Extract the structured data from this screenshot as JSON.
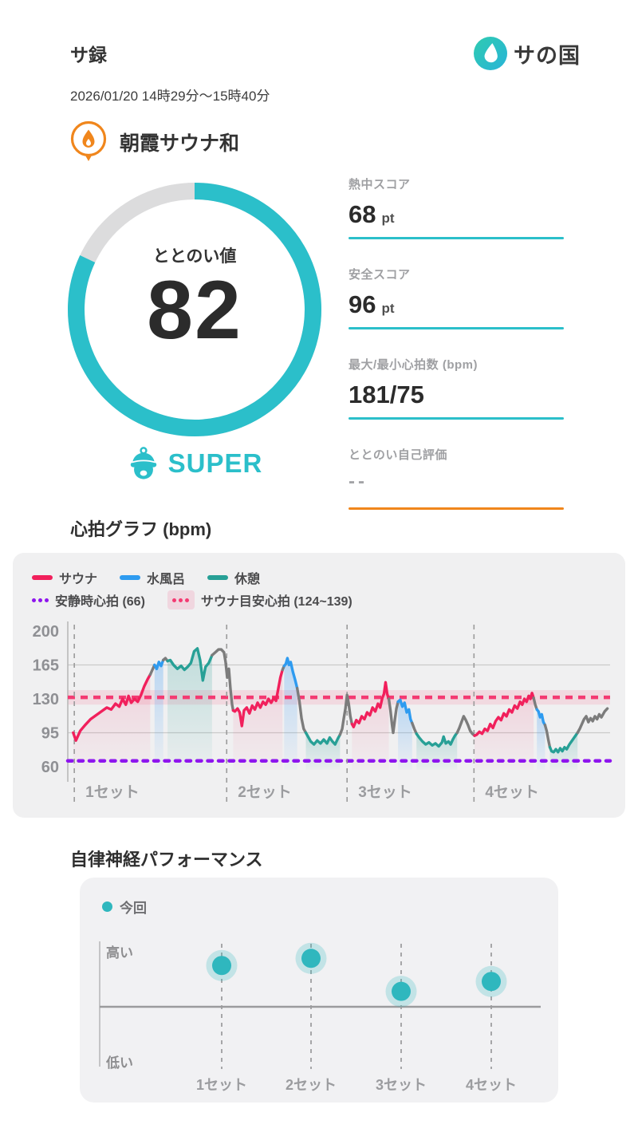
{
  "header": {
    "title": "サ録",
    "brand": "サの国",
    "date_range": "2026/01/20 14時29分〜15時40分"
  },
  "facility": {
    "name": "朝霞サウナ和"
  },
  "totonoi": {
    "label": "ととのい値",
    "value": 82,
    "max": 100,
    "rank": "SUPER"
  },
  "stats": [
    {
      "label": "熱中スコア",
      "value": "68",
      "unit": "pt",
      "underline": "#2BBFCA"
    },
    {
      "label": "安全スコア",
      "value": "96",
      "unit": "pt",
      "underline": "#2BBFCA"
    },
    {
      "label": "最大/最小心拍数 (bpm)",
      "value": "181/75",
      "unit": "",
      "underline": "#2BBFCA"
    },
    {
      "label": "ととのい自己評価",
      "value": "--",
      "unit": "",
      "underline": "#F0861C"
    }
  ],
  "colors": {
    "accent": "#2BBFCA",
    "orange": "#F0861C",
    "sauna": "#F1205C",
    "water": "#2E9BF0",
    "rest": "#27A096",
    "transition": "#7C7C7C",
    "resting_line": "#8E15EE",
    "target_line": "#F43A72"
  },
  "hr_section": {
    "title": "心拍グラフ (bpm)"
  },
  "perf_section": {
    "title": "自律神経パフォーマンス"
  },
  "chart_data": [
    {
      "type": "line",
      "title": "心拍グラフ (bpm)",
      "ylabel": "bpm",
      "ylim": [
        60,
        200
      ],
      "y_ticks": [
        200,
        165,
        130,
        95,
        60
      ],
      "gridlines_y": [
        165,
        95
      ],
      "legend": [
        {
          "label": "サウナ",
          "color": "#F1205C",
          "kind": "line"
        },
        {
          "label": "水風呂",
          "color": "#2E9BF0",
          "kind": "line"
        },
        {
          "label": "休憩",
          "color": "#27A096",
          "kind": "line"
        },
        {
          "label": "安静時心拍 (66)",
          "color": "#8E15EE",
          "kind": "dots"
        },
        {
          "label": "サウナ目安心拍 (124~139)",
          "color": "#F43A72",
          "kind": "band",
          "band_color": "rgba(244,58,114,0.14)"
        }
      ],
      "resting_hr": {
        "value": 66,
        "color": "#8E15EE"
      },
      "sauna_target": {
        "min": 124,
        "max": 139,
        "line": 131.5,
        "color": "#F43A72",
        "band_fill": "rgba(244,58,114,0.13)"
      },
      "sets": [
        {
          "label": "1セット",
          "x_pct": 1.2
        },
        {
          "label": "2セット",
          "x_pct": 29.3
        },
        {
          "label": "3セット",
          "x_pct": 51.5
        },
        {
          "label": "4セット",
          "x_pct": 74.9
        }
      ],
      "phases": {
        "s": {
          "color": "#F1205C",
          "fill": "#F1205C",
          "fill_top_opacity": 0.14
        },
        "w": {
          "color": "#2E9BF0",
          "fill": "#46A0F5",
          "fill_top_opacity": 0.3
        },
        "r": {
          "color": "#27A096",
          "fill": "#27A096",
          "fill_top_opacity": 0.22
        },
        "t": {
          "color": "#7C7C7C",
          "fill": null,
          "fill_top_opacity": 0
        }
      },
      "series_segments": [
        {
          "phase": "s",
          "points": [
            [
              1.0,
              95
            ],
            [
              1.5,
              87
            ],
            [
              2.3,
              97
            ],
            [
              3.2,
              103
            ],
            [
              4.2,
              109
            ],
            [
              5.2,
              113
            ],
            [
              6.2,
              117
            ],
            [
              7.2,
              121
            ],
            [
              8.0,
              119
            ],
            [
              8.8,
              125
            ],
            [
              9.5,
              122
            ],
            [
              10.1,
              130
            ],
            [
              10.7,
              124
            ],
            [
              11.2,
              133
            ],
            [
              11.7,
              126
            ],
            [
              12.3,
              130
            ],
            [
              12.9,
              127
            ],
            [
              13.5,
              134
            ],
            [
              14.1,
              143
            ],
            [
              14.7,
              150
            ],
            [
              15.2,
              155
            ]
          ]
        },
        {
          "phase": "t",
          "points": [
            [
              15.6,
              160
            ],
            [
              16.0,
              165
            ]
          ]
        },
        {
          "phase": "w",
          "points": [
            [
              16.4,
              161
            ],
            [
              16.8,
              168
            ],
            [
              17.2,
              164
            ],
            [
              17.6,
              170
            ]
          ]
        },
        {
          "phase": "t",
          "points": [
            [
              18.0,
              172
            ],
            [
              18.4,
              169
            ]
          ]
        },
        {
          "phase": "r",
          "points": [
            [
              18.9,
              170
            ],
            [
              19.5,
              165
            ],
            [
              20.2,
              161
            ],
            [
              20.9,
              164
            ],
            [
              21.5,
              160
            ],
            [
              22.1,
              163
            ],
            [
              22.7,
              167
            ],
            [
              23.3,
              179
            ],
            [
              23.9,
              182
            ],
            [
              24.4,
              170
            ],
            [
              24.9,
              149
            ],
            [
              25.4,
              163
            ],
            [
              26.0,
              167
            ],
            [
              26.6,
              175
            ]
          ]
        },
        {
          "phase": "t",
          "points": [
            [
              27.2,
              178
            ],
            [
              27.8,
              181
            ],
            [
              28.3,
              181
            ],
            [
              28.8,
              178
            ],
            [
              29.1,
              168
            ],
            [
              29.4,
              152
            ],
            [
              29.7,
              161
            ],
            [
              30.0,
              140
            ],
            [
              30.3,
              124
            ],
            [
              30.5,
              118
            ]
          ]
        },
        {
          "phase": "s",
          "points": [
            [
              30.8,
              117
            ],
            [
              31.3,
              120
            ],
            [
              31.7,
              116
            ],
            [
              32.1,
              102
            ],
            [
              32.5,
              118
            ],
            [
              33.0,
              121
            ],
            [
              33.5,
              115
            ],
            [
              34.0,
              123
            ],
            [
              34.5,
              119
            ],
            [
              35.0,
              126
            ],
            [
              35.5,
              121
            ],
            [
              36.0,
              127
            ],
            [
              36.5,
              124
            ],
            [
              37.0,
              130
            ],
            [
              37.5,
              126
            ],
            [
              38.0,
              131
            ],
            [
              38.4,
              128
            ],
            [
              38.8,
              140
            ],
            [
              39.2,
              152
            ],
            [
              39.6,
              160
            ]
          ]
        },
        {
          "phase": "t",
          "points": [
            [
              39.9,
              164
            ]
          ]
        },
        {
          "phase": "w",
          "points": [
            [
              40.2,
              166
            ],
            [
              40.5,
              172
            ],
            [
              40.8,
              165
            ],
            [
              41.1,
              168
            ],
            [
              41.5,
              158
            ],
            [
              41.9,
              150
            ],
            [
              42.3,
              141
            ]
          ]
        },
        {
          "phase": "t",
          "points": [
            [
              42.7,
              128
            ],
            [
              43.1,
              110
            ],
            [
              43.5,
              99
            ],
            [
              43.9,
              95
            ]
          ]
        },
        {
          "phase": "r",
          "points": [
            [
              44.3,
              91
            ],
            [
              44.8,
              86
            ],
            [
              45.4,
              83
            ],
            [
              46.0,
              87
            ],
            [
              46.6,
              84
            ],
            [
              47.2,
              88
            ],
            [
              47.8,
              84
            ],
            [
              48.3,
              90
            ],
            [
              48.8,
              86
            ],
            [
              49.3,
              83
            ],
            [
              49.8,
              89
            ],
            [
              50.2,
              93
            ]
          ]
        },
        {
          "phase": "t",
          "points": [
            [
              50.6,
              99
            ],
            [
              50.9,
              110
            ],
            [
              51.2,
              120
            ],
            [
              51.5,
              134
            ],
            [
              51.8,
              125
            ],
            [
              52.1,
              112
            ],
            [
              52.4,
              104
            ]
          ]
        },
        {
          "phase": "s",
          "points": [
            [
              52.7,
              101
            ],
            [
              53.2,
              108
            ],
            [
              53.7,
              105
            ],
            [
              54.2,
              112
            ],
            [
              54.7,
              109
            ],
            [
              55.2,
              116
            ],
            [
              55.7,
              113
            ],
            [
              56.2,
              121
            ],
            [
              56.7,
              117
            ],
            [
              57.2,
              125
            ],
            [
              57.6,
              121
            ],
            [
              58.0,
              131
            ],
            [
              58.3,
              135
            ],
            [
              58.6,
              147
            ],
            [
              58.9,
              135
            ],
            [
              59.2,
              130
            ]
          ]
        },
        {
          "phase": "t",
          "points": [
            [
              59.5,
              118
            ],
            [
              59.8,
              103
            ],
            [
              60.0,
              95
            ],
            [
              60.3,
              108
            ],
            [
              60.6,
              120
            ],
            [
              60.9,
              127
            ]
          ]
        },
        {
          "phase": "w",
          "points": [
            [
              61.3,
              129
            ],
            [
              61.7,
              122
            ],
            [
              62.1,
              126
            ],
            [
              62.5,
              116
            ],
            [
              62.9,
              119
            ],
            [
              63.2,
              109
            ],
            [
              63.5,
              105
            ]
          ]
        },
        {
          "phase": "t",
          "points": [
            [
              63.9,
              99
            ],
            [
              64.3,
              94
            ]
          ]
        },
        {
          "phase": "r",
          "points": [
            [
              64.8,
              90
            ],
            [
              65.4,
              86
            ],
            [
              66.0,
              83
            ],
            [
              66.6,
              85
            ],
            [
              67.2,
              82
            ],
            [
              67.8,
              84
            ],
            [
              68.4,
              81
            ],
            [
              69.0,
              85
            ],
            [
              69.3,
              91
            ],
            [
              69.7,
              84
            ],
            [
              70.2,
              86
            ],
            [
              70.6,
              83
            ],
            [
              71.0,
              88
            ],
            [
              71.4,
              92
            ],
            [
              71.8,
              95
            ]
          ]
        },
        {
          "phase": "t",
          "points": [
            [
              72.2,
              100
            ],
            [
              72.6,
              106
            ],
            [
              73.0,
              112
            ],
            [
              73.4,
              108
            ],
            [
              73.8,
              103
            ],
            [
              74.2,
              97
            ],
            [
              74.6,
              94
            ],
            [
              75.0,
              92
            ]
          ]
        },
        {
          "phase": "s",
          "points": [
            [
              75.4,
              93
            ],
            [
              75.9,
              96
            ],
            [
              76.4,
              94
            ],
            [
              76.9,
              99
            ],
            [
              77.4,
              97
            ],
            [
              77.9,
              104
            ],
            [
              78.4,
              100
            ],
            [
              78.9,
              107
            ],
            [
              79.4,
              111
            ],
            [
              79.9,
              108
            ],
            [
              80.4,
              115
            ],
            [
              80.9,
              112
            ],
            [
              81.4,
              119
            ],
            [
              81.9,
              116
            ],
            [
              82.4,
              123
            ],
            [
              82.9,
              120
            ],
            [
              83.4,
              127
            ],
            [
              83.8,
              124
            ],
            [
              84.2,
              130
            ],
            [
              84.6,
              127
            ],
            [
              85.0,
              133
            ],
            [
              85.3,
              130
            ],
            [
              85.6,
              136
            ],
            [
              85.9,
              131
            ]
          ]
        },
        {
          "phase": "t",
          "points": [
            [
              86.2,
              124
            ],
            [
              86.5,
              119
            ]
          ]
        },
        {
          "phase": "w",
          "points": [
            [
              86.8,
              117
            ],
            [
              87.1,
              111
            ],
            [
              87.4,
              114
            ],
            [
              87.7,
              106
            ],
            [
              88.0,
              103
            ]
          ]
        },
        {
          "phase": "t",
          "points": [
            [
              88.3,
              97
            ],
            [
              88.6,
              88
            ],
            [
              88.9,
              80
            ]
          ]
        },
        {
          "phase": "r",
          "points": [
            [
              89.2,
              76
            ],
            [
              89.6,
              75
            ],
            [
              90.0,
              78
            ],
            [
              90.4,
              75
            ],
            [
              90.8,
              79
            ],
            [
              91.2,
              76
            ],
            [
              91.6,
              80
            ],
            [
              92.0,
              78
            ],
            [
              92.5,
              83
            ],
            [
              93.0,
              87
            ],
            [
              93.5,
              91
            ],
            [
              94.0,
              95
            ]
          ]
        },
        {
          "phase": "t",
          "points": [
            [
              94.4,
              99
            ],
            [
              94.8,
              104
            ],
            [
              95.2,
              109
            ],
            [
              95.6,
              112
            ],
            [
              96.0,
              106
            ],
            [
              96.4,
              110
            ],
            [
              96.8,
              107
            ],
            [
              97.2,
              112
            ],
            [
              97.6,
              109
            ],
            [
              98.0,
              114
            ],
            [
              98.4,
              111
            ],
            [
              99.0,
              117
            ],
            [
              99.5,
              120
            ]
          ]
        }
      ]
    },
    {
      "type": "scatter",
      "title": "自律神経パフォーマンス",
      "legend": [
        {
          "label": "今回",
          "color": "#2FB7BE"
        }
      ],
      "y_axis": {
        "top_label": "高い",
        "bottom_label": "低い"
      },
      "categories": [
        "1セット",
        "2セット",
        "3セット",
        "4セット"
      ],
      "values": [
        0.75,
        0.88,
        0.28,
        0.46
      ],
      "dot_color": "#2FB7BE",
      "halo_color": "rgba(47,183,190,0.24)"
    }
  ]
}
